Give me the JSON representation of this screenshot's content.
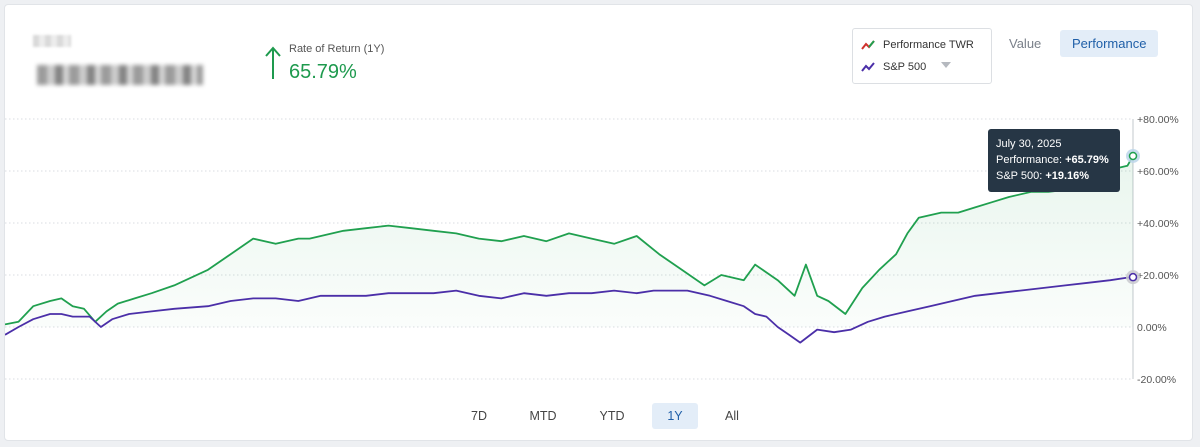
{
  "header": {
    "ror_label": "Rate of Return (1Y)",
    "ror_value": "65.79%"
  },
  "legend": {
    "items": [
      {
        "label": "Performance TWR",
        "color": "#20a04f",
        "icon": "line-icon-red-green"
      },
      {
        "label": "S&P 500",
        "color": "#4b2fa8",
        "icon": "line-icon-purple"
      }
    ]
  },
  "view_toggle": {
    "value_label": "Value",
    "performance_label": "Performance",
    "active": "Performance"
  },
  "tooltip": {
    "date": "July 30, 2025",
    "performance_label": "Performance:",
    "performance_value": "+65.79%",
    "sp500_label": "S&P 500:",
    "sp500_value": "+19.16%"
  },
  "range_buttons": [
    "7D",
    "MTD",
    "YTD",
    "1Y",
    "All"
  ],
  "active_range": "1Y",
  "colors": {
    "performance": "#20a04f",
    "sp500": "#4b2fa8",
    "accent": "#1f5fa8"
  },
  "chart_data": {
    "type": "line",
    "ylim": [
      -20,
      80
    ],
    "y_ticks": [
      "+80.00%",
      "+60.00%",
      "+40.00%",
      "+20.00%",
      "0.00%",
      "-20.00%"
    ],
    "y_tick_values": [
      80,
      60,
      40,
      20,
      0,
      -20
    ],
    "x_range": [
      0,
      1
    ],
    "series": [
      {
        "name": "Performance TWR",
        "x": [
          0,
          0.012,
          0.025,
          0.04,
          0.05,
          0.06,
          0.07,
          0.08,
          0.09,
          0.1,
          0.115,
          0.13,
          0.15,
          0.18,
          0.2,
          0.22,
          0.24,
          0.26,
          0.27,
          0.3,
          0.32,
          0.34,
          0.36,
          0.38,
          0.4,
          0.42,
          0.44,
          0.46,
          0.48,
          0.5,
          0.52,
          0.54,
          0.56,
          0.58,
          0.6,
          0.62,
          0.635,
          0.655,
          0.665,
          0.685,
          0.7,
          0.71,
          0.72,
          0.73,
          0.745,
          0.76,
          0.775,
          0.79,
          0.8,
          0.81,
          0.83,
          0.845,
          0.86,
          0.875,
          0.89,
          0.91,
          0.925,
          0.945,
          0.96,
          0.975,
          0.985,
          0.995,
          1.0
        ],
        "y": [
          1,
          2,
          8,
          10,
          11,
          8,
          7,
          2,
          6,
          9,
          11,
          13,
          16,
          22,
          28,
          34,
          32,
          34,
          34,
          37,
          38,
          39,
          38,
          37,
          36,
          34,
          33,
          35,
          33,
          36,
          34,
          32,
          35,
          28,
          22,
          16,
          20,
          18,
          24,
          18,
          12,
          24,
          12,
          10,
          5,
          15,
          22,
          28,
          36,
          42,
          44,
          44,
          46,
          48,
          50,
          52,
          52,
          53,
          56,
          57,
          61,
          62,
          65.79
        ]
      },
      {
        "name": "S&P 500",
        "x": [
          0,
          0.012,
          0.025,
          0.04,
          0.05,
          0.06,
          0.075,
          0.085,
          0.095,
          0.11,
          0.13,
          0.15,
          0.18,
          0.2,
          0.22,
          0.24,
          0.26,
          0.28,
          0.3,
          0.32,
          0.34,
          0.36,
          0.38,
          0.4,
          0.42,
          0.44,
          0.46,
          0.48,
          0.5,
          0.52,
          0.54,
          0.56,
          0.575,
          0.59,
          0.605,
          0.625,
          0.64,
          0.655,
          0.665,
          0.675,
          0.685,
          0.695,
          0.705,
          0.72,
          0.735,
          0.75,
          0.765,
          0.78,
          0.8,
          0.82,
          0.84,
          0.86,
          0.88,
          0.9,
          0.92,
          0.94,
          0.96,
          0.98,
          0.995,
          1.0
        ],
        "y": [
          -3,
          0,
          3,
          5,
          5,
          4,
          4,
          0,
          3,
          5,
          6,
          7,
          8,
          10,
          11,
          11,
          10,
          12,
          12,
          12,
          13,
          13,
          13,
          14,
          12,
          11,
          13,
          12,
          13,
          13,
          14,
          13,
          14,
          14,
          14,
          12,
          10,
          8,
          5,
          4,
          0,
          -3,
          -6,
          -1,
          -2,
          -1,
          2,
          4,
          6,
          8,
          10,
          12,
          13,
          14,
          15,
          16,
          17,
          18,
          19,
          19.16
        ]
      }
    ]
  }
}
